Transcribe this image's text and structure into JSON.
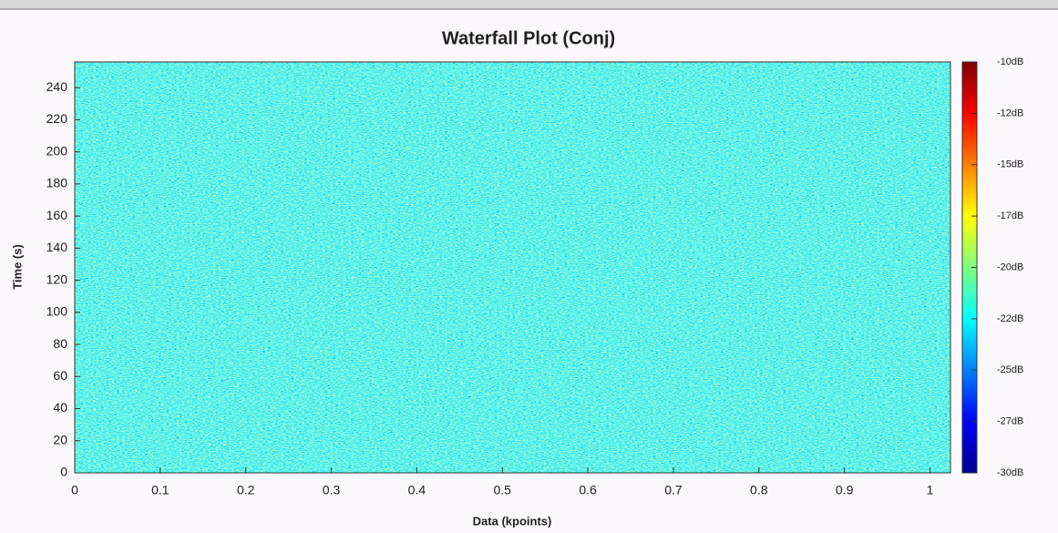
{
  "chart_data": {
    "type": "heatmap",
    "title": "Waterfall Plot (Conj)",
    "xlabel": "Data (kpoints)",
    "ylabel": "Time (s)",
    "xlim": [
      0,
      1.024
    ],
    "xticks": [
      0,
      0.1,
      0.2,
      0.3,
      0.4,
      0.5,
      0.6,
      0.7,
      0.8,
      0.9,
      1
    ],
    "ylim": [
      0,
      256
    ],
    "yticks": [
      0,
      20,
      40,
      60,
      80,
      100,
      120,
      140,
      160,
      180,
      200,
      220,
      240
    ],
    "colormap": "jet",
    "clim": [
      -30,
      -10
    ],
    "cticks": [
      {
        "value": -10,
        "label": "-10dB"
      },
      {
        "value": -12.5,
        "label": "-12dB"
      },
      {
        "value": -15,
        "label": "-15dB"
      },
      {
        "value": -17.5,
        "label": "-17dB"
      },
      {
        "value": -20,
        "label": "-20dB"
      },
      {
        "value": -22.5,
        "label": "-22dB"
      },
      {
        "value": -25,
        "label": "-25dB"
      },
      {
        "value": -27.5,
        "label": "-27dB"
      },
      {
        "value": -30,
        "label": "-30dB"
      }
    ]
  }
}
